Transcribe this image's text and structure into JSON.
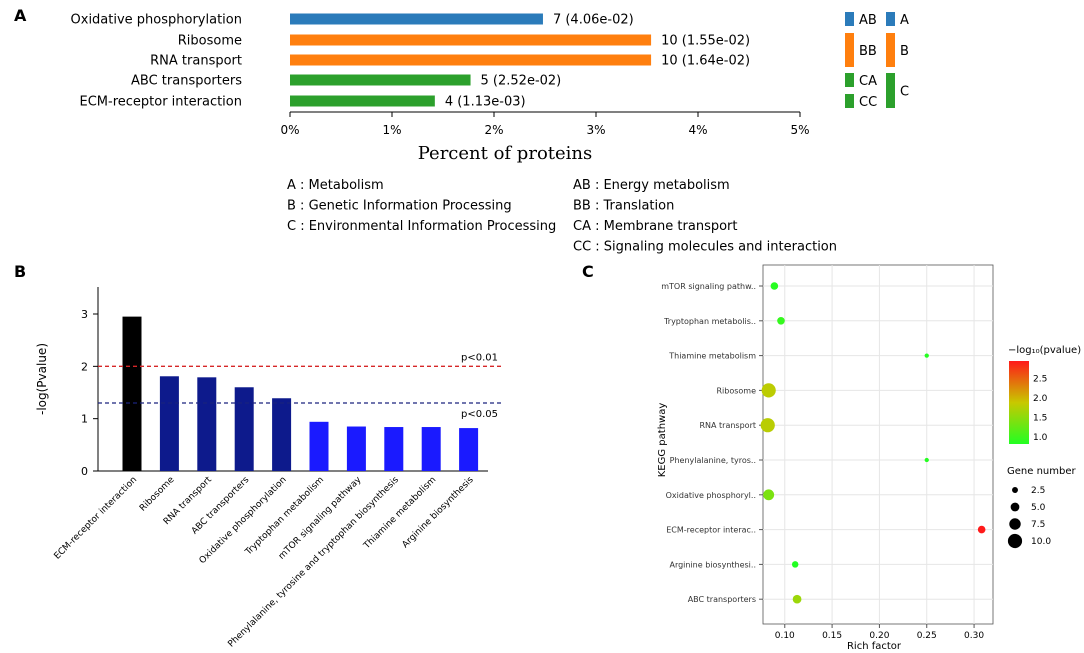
{
  "panels": {
    "a": "A",
    "b": "B",
    "c": "C"
  },
  "colors": {
    "blue_a": "#2b7bba",
    "orange_b": "#ff7f0e",
    "green_c": "#2ca02c",
    "black": "#000000",
    "navy": "#0d1a8c",
    "blue": "#1a1aff",
    "red_line": "#d62728",
    "navy_line": "#1a237e"
  },
  "chart_data": [
    {
      "type": "bar",
      "orientation": "horizontal",
      "title": "",
      "xlabel": "Percent of proteins",
      "ylabel": "",
      "xlim": [
        0,
        5
      ],
      "xticks": [
        "0%",
        "1%",
        "2%",
        "3%",
        "4%",
        "5%"
      ],
      "categories": [
        "Oxidative phosphorylation",
        "Ribosome",
        "RNA transport",
        "ABC transporters",
        "ECM-receptor interaction"
      ],
      "values": [
        2.48,
        3.54,
        3.54,
        1.77,
        1.42
      ],
      "data_labels": [
        "7 (4.06e-02)",
        "10 (1.55e-02)",
        "10 (1.64e-02)",
        "5 (2.52e-02)",
        "4 (1.13e-03)"
      ],
      "groups": [
        "A",
        "B",
        "B",
        "C",
        "C"
      ],
      "subgroups": [
        {
          "code": "AB",
          "group": "A",
          "rows": 1
        },
        {
          "code": "BB",
          "group": "B",
          "rows": 2
        },
        {
          "code": "CA",
          "group": "C",
          "rows": 1
        },
        {
          "code": "CC",
          "group": "C",
          "rows": 1
        }
      ],
      "group_labels": [
        "A",
        "B",
        "C"
      ],
      "legend_left": [
        "A : Metabolism",
        "B : Genetic Information Processing",
        "C : Environmental Information Processing"
      ],
      "legend_right": [
        "AB : Energy metabolism",
        "BB : Translation",
        "CA : Membrane transport",
        "CC : Signaling molecules and interaction"
      ]
    },
    {
      "type": "bar",
      "title": "",
      "xlabel": "",
      "ylabel": "-log(Pvalue)",
      "ylim": [
        0,
        3.5
      ],
      "yticks": [
        "0",
        "1",
        "2",
        "3"
      ],
      "categories": [
        "ECM-receptor interaction",
        "Ribosome",
        "RNA transport",
        "ABC transporters",
        "Oxidative phosphorylation",
        "Tryptophan metabolism",
        "mTOR signaling pathway",
        "Phenylalanine, tyrosine and tryptophan biosynthesis",
        "Thiamine metabolism",
        "Arginine biosynthesis"
      ],
      "values": [
        2.95,
        1.81,
        1.79,
        1.6,
        1.39,
        0.94,
        0.85,
        0.84,
        0.84,
        0.82
      ],
      "bar_colors": [
        "#000000",
        "#0d1a8c",
        "#0d1a8c",
        "#0d1a8c",
        "#0d1a8c",
        "#1a1aff",
        "#1a1aff",
        "#1a1aff",
        "#1a1aff",
        "#1a1aff"
      ],
      "thresholds": [
        {
          "label": "p<0.01",
          "value": 2.0
        },
        {
          "label": "p<0.05",
          "value": 1.3
        }
      ]
    },
    {
      "type": "scatter",
      "title": "",
      "xlabel": "Rich factor",
      "ylabel": "KEGG pathway",
      "xlim": [
        0.077,
        0.32
      ],
      "xticks": [
        "0.10",
        "0.15",
        "0.20",
        "0.25",
        "0.30"
      ],
      "categories": [
        "mTOR signaling pathw..",
        "Tryptophan metabolis..",
        "Thiamine metabolism",
        "Ribosome",
        "RNA transport",
        "Phenylalanine, tyros..",
        "Oxidative phosphoryl..",
        "ECM-receptor interac..",
        "Arginine biosynthesi..",
        "ABC transporters"
      ],
      "x": [
        0.089,
        0.096,
        0.25,
        0.083,
        0.082,
        0.25,
        0.083,
        0.308,
        0.111,
        0.113
      ],
      "gene_number": [
        4,
        4,
        1,
        10,
        10,
        1,
        7,
        4,
        3,
        5
      ],
      "neglog10_pvalue": [
        0.85,
        0.94,
        0.84,
        1.81,
        1.79,
        0.84,
        1.39,
        2.95,
        0.82,
        1.6
      ],
      "color_legend": {
        "title": "−log₁₀(pvalue)",
        "ticks": [
          "2.5",
          "2.0",
          "1.5",
          "1.0"
        ],
        "range": [
          0.82,
          2.95
        ]
      },
      "size_legend": {
        "title": "Gene number",
        "ticks": [
          "2.5",
          "5.0",
          "7.5",
          "10.0"
        ]
      }
    }
  ]
}
